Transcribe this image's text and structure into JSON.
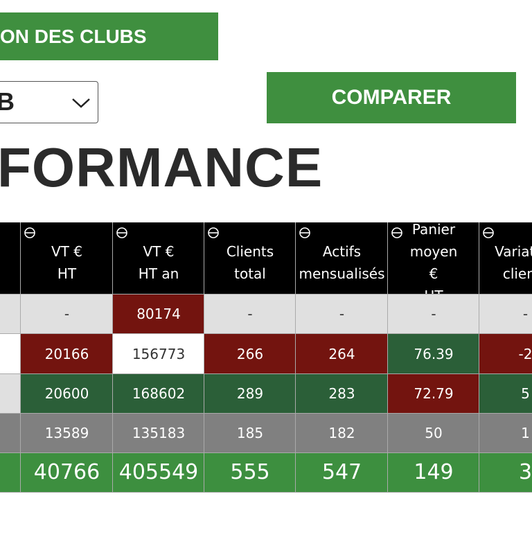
{
  "header": {
    "section_button": "ON DES CLUBS",
    "select_value": "B",
    "compare_button": "COMPARER",
    "title": "FORMANCE"
  },
  "table": {
    "headers": [
      "VT € HT",
      "VT € HT an",
      "Clients\ntotal",
      "Actifs\nmensualisés",
      "Panier\nmoyen €\nHT",
      "Variation\nclients"
    ],
    "rows": [
      [
        "-",
        "80174",
        "-",
        "-",
        "-",
        "-"
      ],
      [
        "20166",
        "156773",
        "266",
        "264",
        "76.39",
        "-2"
      ],
      [
        "20600",
        "168602",
        "289",
        "283",
        "72.79",
        "5"
      ],
      [
        "13589",
        "135183",
        "185",
        "182",
        "50",
        "1"
      ]
    ],
    "totals": [
      "40766",
      "405549",
      "555",
      "547",
      "149",
      "3"
    ],
    "cell_colors": [
      [
        "#e0e0e0",
        "#73140f",
        "#e0e0e0",
        "#e0e0e0",
        "#e0e0e0",
        "#e0e0e0"
      ],
      [
        "#73140f",
        "#ffffff",
        "#73140f",
        "#73140f",
        "#2b5f38",
        "#73140f"
      ],
      [
        "#2b5f38",
        "#2b5f38",
        "#2b5f38",
        "#2b5f38",
        "#73140f",
        "#2b5f38"
      ],
      [
        "#808080",
        "#808080",
        "#808080",
        "#808080",
        "#808080",
        "#808080"
      ]
    ],
    "row_lead_colors": [
      "#e0e0e0",
      "#ffffff",
      "#e0e0e0",
      "#808080"
    ],
    "total_color": "#3d8f3f"
  }
}
